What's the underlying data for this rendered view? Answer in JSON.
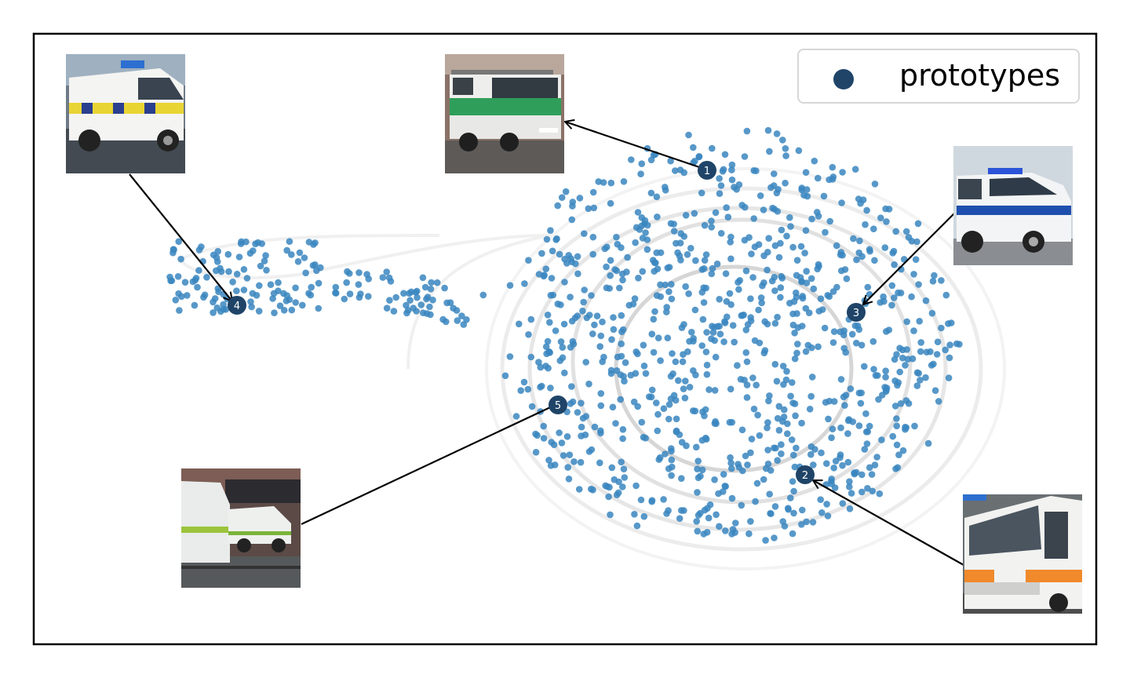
{
  "chart_data": {
    "type": "scatter",
    "title": "",
    "xlabel": "",
    "ylabel": "",
    "axes_ticks": false,
    "grid": false,
    "legend": {
      "position": "top-right",
      "entries": [
        {
          "label": "prototypes",
          "color": "#1f4468"
        }
      ]
    },
    "point_color": "#3a86c0",
    "prototype_color": "#1f4468",
    "density_contours": true,
    "prototypes": [
      {
        "label": "1",
        "image": "green-white-police-van"
      },
      {
        "label": "2",
        "image": "white-orange-ambulance-van"
      },
      {
        "label": "3",
        "image": "white-blue-police-van"
      },
      {
        "label": "4",
        "image": "white-yellow-police-van"
      },
      {
        "label": "5",
        "image": "white-green-ambulance-street"
      }
    ]
  }
}
